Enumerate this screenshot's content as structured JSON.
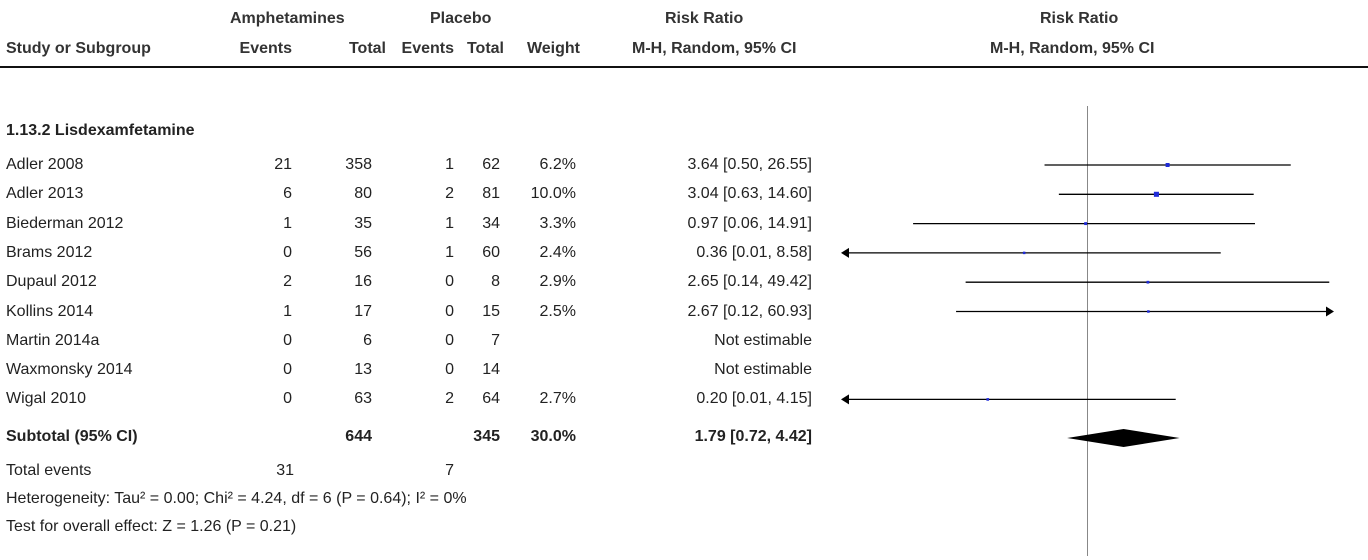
{
  "header": {
    "group1": "Amphetamines",
    "group2": "Placebo",
    "rr_title": "Risk Ratio",
    "plot_title": "Risk Ratio",
    "study_col": "Study or Subgroup",
    "events1": "Events",
    "total1": "Total",
    "events2": "Events",
    "total2": "Total",
    "weight": "Weight",
    "method": "M-H, Random, 95% CI",
    "plot_method": "M-H, Random, 95% CI"
  },
  "subgroup": {
    "title": "1.13.2 Lisdexamfetamine",
    "subtotal_label": "Subtotal (95% CI)",
    "subtotal_total1": "644",
    "subtotal_total2": "345",
    "subtotal_weight": "30.0%",
    "subtotal_ci": "1.79 [0.72, 4.42]",
    "total_events_label": "Total events",
    "total_events1": "31",
    "total_events2": "7",
    "heterogeneity": "Heterogeneity: Tau² = 0.00; Chi² = 4.24, df = 6 (P = 0.64); I² = 0%",
    "overall_effect": "Test for overall effect: Z = 1.26 (P = 0.21)"
  },
  "rows": [
    {
      "study": "Adler 2008",
      "e1": "21",
      "t1": "358",
      "e2": "1",
      "t2": "62",
      "weight": "6.2%",
      "ci": "3.64 [0.50, 26.55]"
    },
    {
      "study": "Adler 2013",
      "e1": "6",
      "t1": "80",
      "e2": "2",
      "t2": "81",
      "weight": "10.0%",
      "ci": "3.04 [0.63, 14.60]"
    },
    {
      "study": "Biederman 2012",
      "e1": "1",
      "t1": "35",
      "e2": "1",
      "t2": "34",
      "weight": "3.3%",
      "ci": "0.97 [0.06, 14.91]"
    },
    {
      "study": "Brams 2012",
      "e1": "0",
      "t1": "56",
      "e2": "1",
      "t2": "60",
      "weight": "2.4%",
      "ci": "0.36 [0.01, 8.58]"
    },
    {
      "study": "Dupaul 2012",
      "e1": "2",
      "t1": "16",
      "e2": "0",
      "t2": "8",
      "weight": "2.9%",
      "ci": "2.65 [0.14, 49.42]"
    },
    {
      "study": "Kollins 2014",
      "e1": "1",
      "t1": "17",
      "e2": "0",
      "t2": "15",
      "weight": "2.5%",
      "ci": "2.67 [0.12, 60.93]"
    },
    {
      "study": "Martin 2014a",
      "e1": "0",
      "t1": "6",
      "e2": "0",
      "t2": "7",
      "weight": "",
      "ci": "Not estimable"
    },
    {
      "study": "Waxmonsky 2014",
      "e1": "0",
      "t1": "13",
      "e2": "0",
      "t2": "14",
      "weight": "",
      "ci": "Not estimable"
    },
    {
      "study": "Wigal 2010",
      "e1": "0",
      "t1": "63",
      "e2": "2",
      "t2": "64",
      "weight": "2.7%",
      "ci": "0.20 [0.01, 4.15]"
    }
  ],
  "chart_data": {
    "type": "forest",
    "scale": "log",
    "null_value": 1,
    "xlim": [
      0.02,
      50
    ],
    "studies": [
      {
        "name": "Adler 2008",
        "rr": 3.64,
        "lo": 0.5,
        "hi": 26.55,
        "weight": 6.2
      },
      {
        "name": "Adler 2013",
        "rr": 3.04,
        "lo": 0.63,
        "hi": 14.6,
        "weight": 10.0
      },
      {
        "name": "Biederman 2012",
        "rr": 0.97,
        "lo": 0.06,
        "hi": 14.91,
        "weight": 3.3
      },
      {
        "name": "Brams 2012",
        "rr": 0.36,
        "lo": 0.01,
        "hi": 8.58,
        "weight": 2.4
      },
      {
        "name": "Dupaul 2012",
        "rr": 2.65,
        "lo": 0.14,
        "hi": 49.42,
        "weight": 2.9
      },
      {
        "name": "Kollins 2014",
        "rr": 2.67,
        "lo": 0.12,
        "hi": 60.93,
        "weight": 2.5
      },
      {
        "name": "Martin 2014a",
        "rr": null,
        "lo": null,
        "hi": null,
        "weight": null
      },
      {
        "name": "Waxmonsky 2014",
        "rr": null,
        "lo": null,
        "hi": null,
        "weight": null
      },
      {
        "name": "Wigal 2010",
        "rr": 0.2,
        "lo": 0.01,
        "hi": 4.15,
        "weight": 2.7
      }
    ],
    "subtotal": {
      "rr": 1.79,
      "lo": 0.72,
      "hi": 4.42
    },
    "colors": {
      "marker": "#1f2bd8",
      "line": "#000000",
      "axis": "#888888"
    }
  }
}
